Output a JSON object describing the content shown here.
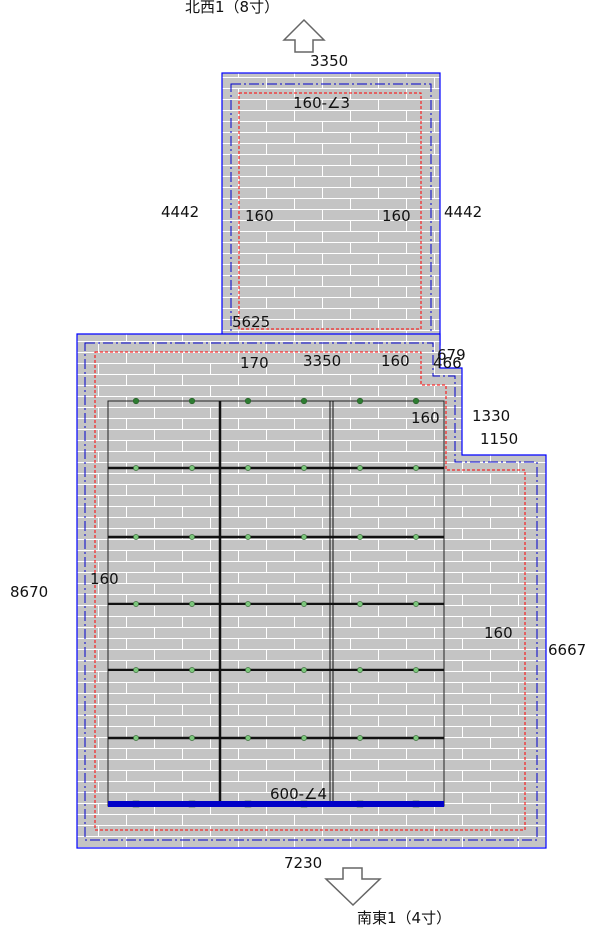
{
  "colors": {
    "roof_fill": "#c4c4c4",
    "tile_line": "#ffffff",
    "outline": "#0000ff",
    "eave_dashdot": "#0000cc",
    "offset_dashed": "#ff0000",
    "panel_frame": "#000000",
    "mount_point": "#7cc67c",
    "ridge_point": "#2e7d32",
    "base_rail": "#0000c8"
  },
  "north_face": {
    "direction_label": "北西1（8寸）",
    "width_dim": "3350",
    "left_dim": "4442",
    "right_dim": "4442",
    "spec_label": "160-∠3",
    "margin_left": "160",
    "margin_right": "160",
    "bottom_dim": "5625"
  },
  "south_face": {
    "direction_label": "南東1（4寸）",
    "width_dim": "7230",
    "left_dim": "8670",
    "right_dim": "6667",
    "step_dim_upper": "1330",
    "step_dim_lower": "1150",
    "spec_label": "600-∠4",
    "margin_top_left": "170",
    "top_width": "3350",
    "margin_top_right": "160",
    "notch_dim_a": "679",
    "notch_dim_b": "466",
    "margin_inner": "160",
    "margin_left": "160",
    "margin_right": "160"
  },
  "panel_grid": {
    "columns": 3,
    "rows": 6,
    "mount_points_per_row": 6
  }
}
